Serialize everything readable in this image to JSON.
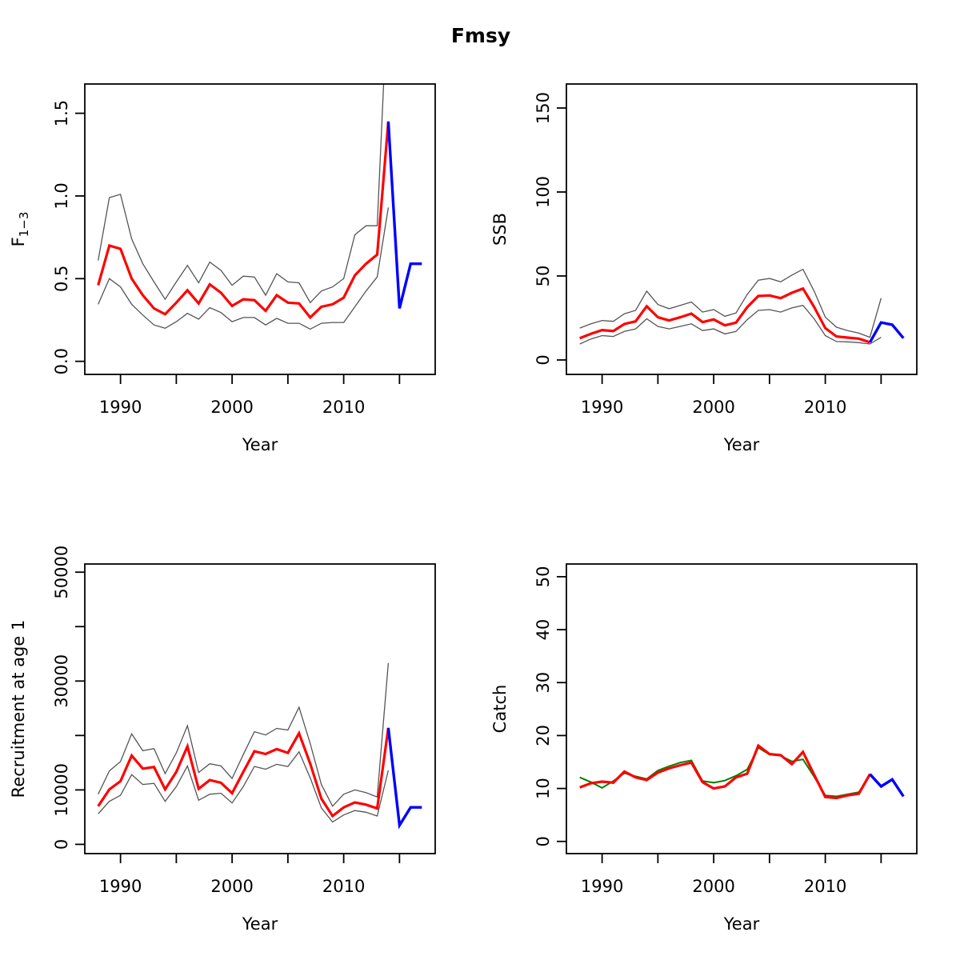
{
  "title": "Fmsy",
  "chart_data": {
    "type": "line",
    "layout": "2x2-grid",
    "grid": false,
    "legend": "none",
    "colors": {
      "estimate": "#ff0000",
      "forecast": "#0000ff",
      "confidence_band": "#555555",
      "observed": "#008000",
      "axis": "#000000"
    },
    "panels": [
      {
        "id": "f",
        "ylab": "F",
        "ylab_sub": "1−3",
        "xlab": "Year",
        "xlim": [
          1986.8,
          2018.2
        ],
        "ylim": [
          -0.079,
          1.677
        ],
        "xticks": [
          1990,
          1995,
          2000,
          2005,
          2010,
          2015
        ],
        "xtick_labels": [
          "1990",
          "",
          "2000",
          "",
          "2010",
          ""
        ],
        "yticks": [
          0,
          0.5,
          1.0,
          1.5
        ],
        "ytick_labels": [
          "0.0",
          "0.5",
          "1.0",
          "1.5"
        ],
        "series": [
          {
            "name": "ci-upper",
            "color": "#555555",
            "width": 1.3,
            "years": [
              1988,
              1989,
              1990,
              1991,
              1992,
              1993,
              1994,
              1995,
              1996,
              1997,
              1998,
              1999,
              2000,
              2001,
              2002,
              2003,
              2004,
              2005,
              2006,
              2007,
              2008,
              2009,
              2010,
              2011,
              2012,
              2013,
              2014
            ],
            "values": [
              0.61,
              0.99,
              1.01,
              0.74,
              0.59,
              0.48,
              0.375,
              0.48,
              0.58,
              0.475,
              0.6,
              0.55,
              0.46,
              0.515,
              0.51,
              0.4,
              0.53,
              0.48,
              0.475,
              0.355,
              0.425,
              0.45,
              0.5,
              0.765,
              0.82,
              0.82,
              2.3
            ]
          },
          {
            "name": "ci-lower",
            "color": "#555555",
            "width": 1.3,
            "years": [
              1988,
              1989,
              1990,
              1991,
              1992,
              1993,
              1994,
              1995,
              1996,
              1997,
              1998,
              1999,
              2000,
              2001,
              2002,
              2003,
              2004,
              2005,
              2006,
              2007,
              2008,
              2009,
              2010,
              2011,
              2012,
              2013,
              2014
            ],
            "values": [
              0.345,
              0.5,
              0.45,
              0.345,
              0.28,
              0.22,
              0.2,
              0.24,
              0.29,
              0.255,
              0.325,
              0.295,
              0.24,
              0.265,
              0.265,
              0.22,
              0.26,
              0.23,
              0.23,
              0.195,
              0.23,
              0.235,
              0.235,
              0.33,
              0.425,
              0.51,
              0.93
            ]
          },
          {
            "name": "estimate",
            "color": "#ff0000",
            "width": 3.2,
            "years": [
              1988,
              1989,
              1990,
              1991,
              1992,
              1993,
              1994,
              1995,
              1996,
              1997,
              1998,
              1999,
              2000,
              2001,
              2002,
              2003,
              2004,
              2005,
              2006,
              2007,
              2008,
              2009,
              2010,
              2011,
              2012,
              2013,
              2014
            ],
            "values": [
              0.46,
              0.7,
              0.68,
              0.5,
              0.4,
              0.32,
              0.285,
              0.355,
              0.43,
              0.35,
              0.465,
              0.415,
              0.335,
              0.375,
              0.37,
              0.305,
              0.4,
              0.355,
              0.35,
              0.265,
              0.33,
              0.345,
              0.385,
              0.52,
              0.59,
              0.645,
              1.45
            ]
          },
          {
            "name": "forecast",
            "color": "#0000ff",
            "width": 3.4,
            "years": [
              2014,
              2015,
              2016,
              2017
            ],
            "values": [
              1.45,
              0.32,
              0.59,
              0.59
            ]
          }
        ]
      },
      {
        "id": "ssb",
        "ylab": "SSB",
        "xlab": "Year",
        "xlim": [
          1986.8,
          2018.2
        ],
        "ylim": [
          -8.6,
          164.3
        ],
        "xticks": [
          1990,
          1995,
          2000,
          2005,
          2010,
          2015
        ],
        "xtick_labels": [
          "1990",
          "",
          "2000",
          "",
          "2010",
          ""
        ],
        "yticks": [
          0,
          50,
          100,
          150
        ],
        "ytick_labels": [
          "0",
          "50",
          "100",
          "150"
        ],
        "series": [
          {
            "name": "ci-upper",
            "color": "#555555",
            "width": 1.3,
            "years": [
              1988,
              1989,
              1990,
              1991,
              1992,
              1993,
              1994,
              1995,
              1996,
              1997,
              1998,
              1999,
              2000,
              2001,
              2002,
              2003,
              2004,
              2005,
              2006,
              2007,
              2008,
              2009,
              2010,
              2011,
              2012,
              2013,
              2014,
              2015
            ],
            "values": [
              19,
              21.5,
              23.5,
              23,
              27.5,
              29.5,
              41,
              33,
              30.5,
              32.5,
              34.5,
              28.5,
              30,
              26,
              28,
              39,
              47.5,
              48.5,
              46.5,
              50.5,
              54,
              41,
              25.5,
              19.5,
              17.5,
              16,
              13.5,
              36.8
            ]
          },
          {
            "name": "ci-lower",
            "color": "#555555",
            "width": 1.3,
            "years": [
              1988,
              1989,
              1990,
              1991,
              1992,
              1993,
              1994,
              1995,
              1996,
              1997,
              1998,
              1999,
              2000,
              2001,
              2002,
              2003,
              2004,
              2005,
              2006,
              2007,
              2008,
              2009,
              2010,
              2011,
              2012,
              2013,
              2014,
              2015
            ],
            "values": [
              9.5,
              12.5,
              14.5,
              14,
              17,
              18.5,
              24.5,
              20,
              18.5,
              20,
              21.5,
              17.5,
              18.5,
              15.5,
              17,
              24,
              29.5,
              30,
              28.5,
              31,
              32.5,
              24.5,
              14.5,
              11,
              10.8,
              10.3,
              9.5,
              13.5
            ]
          },
          {
            "name": "estimate",
            "color": "#ff0000",
            "width": 3.2,
            "years": [
              1988,
              1989,
              1990,
              1991,
              1992,
              1993,
              1994,
              1995,
              1996,
              1997,
              1998,
              1999,
              2000,
              2001,
              2002,
              2003,
              2004,
              2005,
              2006,
              2007,
              2008,
              2009,
              2010,
              2011,
              2012,
              2013,
              2014
            ],
            "values": [
              13.0,
              15.6,
              17.8,
              17.2,
              21.4,
              23.0,
              32.0,
              25.4,
              23.5,
              25.4,
              27.6,
              22.5,
              24.1,
              20.6,
              22.2,
              31.4,
              38.1,
              38.4,
              36.8,
              40.0,
              42.5,
              31.5,
              19.0,
              14.0,
              13.3,
              12.7,
              10.5
            ]
          },
          {
            "name": "forecast",
            "color": "#0000ff",
            "width": 3.4,
            "years": [
              2014,
              2015,
              2016,
              2017
            ],
            "values": [
              10.5,
              22.3,
              21.0,
              13.0
            ]
          }
        ]
      },
      {
        "id": "recruitment",
        "ylab": "Recruitment at age 1",
        "xlab": "Year",
        "xlim": [
          1986.8,
          2018.2
        ],
        "ylim": [
          -1700,
          51500
        ],
        "xticks": [
          1990,
          1995,
          2000,
          2005,
          2010,
          2015
        ],
        "xtick_labels": [
          "1990",
          "",
          "2000",
          "",
          "2010",
          ""
        ],
        "yticks": [
          0,
          10000,
          20000,
          30000,
          40000,
          50000
        ],
        "ytick_labels": [
          "0",
          "10000",
          "",
          "30000",
          "",
          "50000"
        ],
        "series": [
          {
            "name": "ci-upper",
            "color": "#555555",
            "width": 1.3,
            "years": [
              1988,
              1989,
              1990,
              1991,
              1992,
              1993,
              1994,
              1995,
              1996,
              1997,
              1998,
              1999,
              2000,
              2001,
              2002,
              2003,
              2004,
              2005,
              2006,
              2007,
              2008,
              2009,
              2010,
              2011,
              2012,
              2013,
              2014
            ],
            "values": [
              9200,
              13500,
              15200,
              20300,
              17200,
              17600,
              13000,
              16800,
              21800,
              13200,
              14800,
              14400,
              12100,
              16500,
              20700,
              20100,
              21300,
              21000,
              25200,
              18500,
              11000,
              7000,
              9200,
              10000,
              9500,
              8700,
              33300
            ]
          },
          {
            "name": "ci-lower",
            "color": "#555555",
            "width": 1.3,
            "years": [
              1988,
              1989,
              1990,
              1991,
              1992,
              1993,
              1994,
              1995,
              1996,
              1997,
              1998,
              1999,
              2000,
              2001,
              2002,
              2003,
              2004,
              2005,
              2006,
              2007,
              2008,
              2009,
              2010,
              2011,
              2012,
              2013,
              2014
            ],
            "values": [
              5600,
              7900,
              9000,
              12800,
              11000,
              11200,
              7900,
              10600,
              14400,
              8100,
              9200,
              9400,
              7600,
              10600,
              14300,
              13800,
              14700,
              14300,
              17000,
              12200,
              6700,
              4100,
              5400,
              6200,
              5900,
              5200,
              13600
            ]
          },
          {
            "name": "estimate",
            "color": "#ff0000",
            "width": 3.2,
            "years": [
              1988,
              1989,
              1990,
              1991,
              1992,
              1993,
              1994,
              1995,
              1996,
              1997,
              1998,
              1999,
              2000,
              2001,
              2002,
              2003,
              2004,
              2005,
              2006,
              2007,
              2008,
              2009,
              2010,
              2011,
              2012,
              2013,
              2014
            ],
            "values": [
              7000,
              10100,
              11600,
              16300,
              13900,
              14200,
              10100,
              13300,
              18000,
              10200,
              11800,
              11300,
              9400,
              13300,
              17100,
              16600,
              17500,
              16800,
              20400,
              14800,
              8400,
              5200,
              6800,
              7700,
              7300,
              6600,
              21400
            ]
          },
          {
            "name": "forecast",
            "color": "#0000ff",
            "width": 3.4,
            "years": [
              2014,
              2015,
              2016,
              2017
            ],
            "values": [
              21400,
              3500,
              6800,
              6800
            ]
          }
        ]
      },
      {
        "id": "catch",
        "ylab": "Catch",
        "xlab": "Year",
        "xlim": [
          1986.8,
          2018.2
        ],
        "ylim": [
          -2.3,
          52.4
        ],
        "xticks": [
          1990,
          1995,
          2000,
          2005,
          2010,
          2015
        ],
        "xtick_labels": [
          "1990",
          "",
          "2000",
          "",
          "2010",
          ""
        ],
        "yticks": [
          0,
          10,
          20,
          30,
          40,
          50
        ],
        "ytick_labels": [
          "0",
          "10",
          "20",
          "30",
          "40",
          "50"
        ],
        "series": [
          {
            "name": "observed",
            "color": "#008000",
            "width": 2.0,
            "years": [
              1988,
              1989,
              1990,
              1991,
              1992,
              1993,
              1994,
              1995,
              1996,
              1997,
              1998,
              1999,
              2000,
              2001,
              2002,
              2003,
              2004,
              2005,
              2006,
              2007,
              2008,
              2009,
              2010,
              2011,
              2012,
              2013,
              2014
            ],
            "values": [
              12.1,
              11.2,
              10.1,
              11.4,
              12.9,
              12.3,
              11.8,
              13.4,
              14.2,
              14.9,
              15.3,
              11.4,
              11.1,
              11.5,
              12.4,
              13.6,
              17.7,
              16.4,
              16.2,
              15.1,
              15.5,
              12.2,
              8.7,
              8.5,
              8.9,
              9.3,
              12.4
            ]
          },
          {
            "name": "estimate",
            "color": "#ff0000",
            "width": 3.2,
            "years": [
              1988,
              1989,
              1990,
              1991,
              1992,
              1993,
              1994,
              1995,
              1996,
              1997,
              1998,
              1999,
              2000,
              2001,
              2002,
              2003,
              2004,
              2005,
              2006,
              2007,
              2008,
              2009,
              2010,
              2011,
              2012,
              2013,
              2014
            ],
            "values": [
              10.2,
              11.0,
              11.3,
              11.1,
              13.2,
              12.1,
              11.6,
              13.0,
              13.8,
              14.4,
              14.9,
              11.2,
              10.0,
              10.4,
              12.1,
              12.8,
              18.1,
              16.5,
              16.3,
              14.6,
              16.9,
              12.6,
              8.4,
              8.2,
              8.7,
              9.0,
              12.7
            ]
          },
          {
            "name": "forecast",
            "color": "#0000ff",
            "width": 3.4,
            "years": [
              2014,
              2015,
              2016,
              2017
            ],
            "values": [
              12.7,
              10.4,
              11.7,
              8.5
            ]
          }
        ]
      }
    ]
  }
}
